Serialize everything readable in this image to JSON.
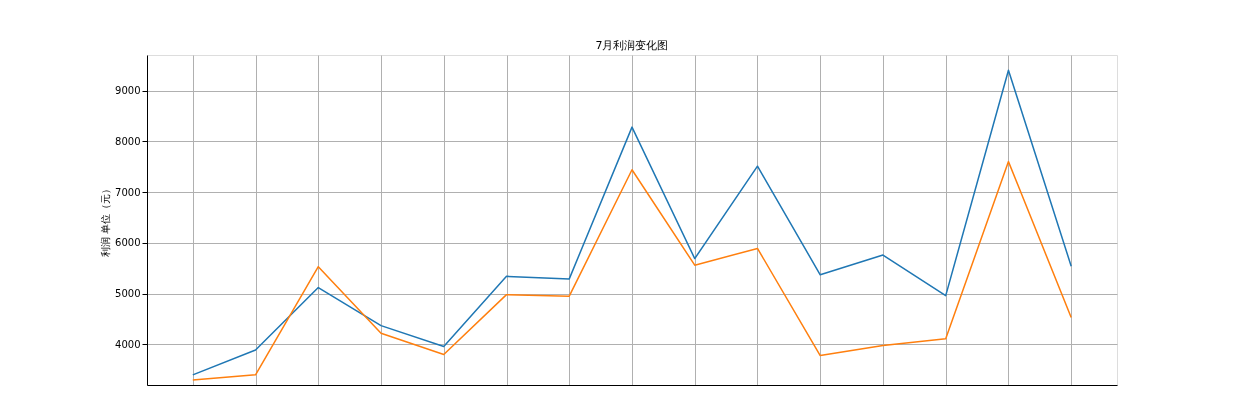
{
  "chart_data": {
    "type": "line",
    "title": "7月利润变化图",
    "ylabel": "利润 单位（元）",
    "categories": [
      null,
      null,
      null,
      null,
      null,
      null,
      null,
      null,
      null,
      null,
      null,
      null,
      null,
      null,
      null
    ],
    "series": [
      {
        "color": "#1f77b4",
        "values": [
          3400,
          3890,
          5120,
          4370,
          3960,
          5340,
          5290,
          8280,
          5690,
          7510,
          5370,
          5760,
          4960,
          9400,
          5540
        ]
      },
      {
        "color": "#ff7f0e",
        "values": [
          3300,
          3400,
          5530,
          4220,
          3800,
          4980,
          4950,
          7440,
          5560,
          5890,
          3780,
          3980,
          4110,
          7600,
          4530
        ]
      }
    ],
    "ylim": [
      3200,
      9700
    ],
    "yticks": [
      4000,
      5000,
      6000,
      7000,
      8000,
      9000
    ],
    "grid": true,
    "tick_labels": "y"
  }
}
